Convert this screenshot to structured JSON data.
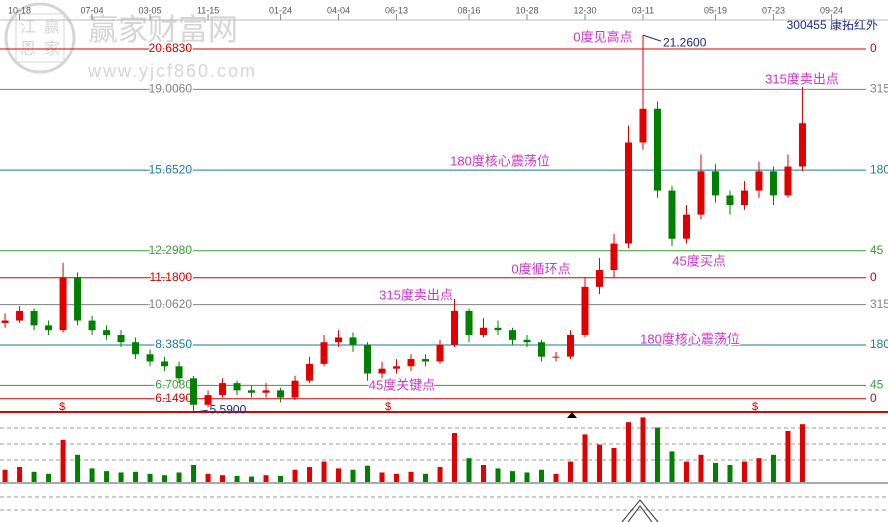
{
  "chart_data": {
    "type": "candlestick",
    "title": "300455 康拓红外",
    "watermark": {
      "site": "赢家财富网",
      "url": "www.yjcf860.com",
      "seal": [
        "江",
        "赢",
        "恩",
        "家"
      ]
    },
    "xlim": [
      -0.35,
      60.9
    ],
    "xticks": [
      {
        "value": 1,
        "label": "10-18"
      },
      {
        "value": 6,
        "label": "07-04"
      },
      {
        "value": 10,
        "label": "03-05"
      },
      {
        "value": 14,
        "label": "11-15"
      },
      {
        "value": 19,
        "label": "01-24"
      },
      {
        "value": 23,
        "label": "04-04"
      },
      {
        "value": 27,
        "label": "06-13"
      },
      {
        "value": 32,
        "label": "08-16"
      },
      {
        "value": 36,
        "label": "10-28"
      },
      {
        "value": 40,
        "label": "12-30"
      },
      {
        "value": 44,
        "label": "03-11"
      },
      {
        "value": 49,
        "label": "05-19"
      },
      {
        "value": 53,
        "label": "07-23"
      },
      {
        "value": 57,
        "label": "09-24"
      }
    ],
    "ylim": [
      5.6,
      22.72
    ],
    "levels": [
      {
        "value": 20.683,
        "label": "20.6830",
        "angle": "0",
        "color": "#d00000"
      },
      {
        "value": 19.006,
        "label": "19.0060",
        "angle": "315",
        "color": "#808080"
      },
      {
        "value": 15.652,
        "label": "15.6520",
        "angle": "180",
        "color": "#1a7a9a"
      },
      {
        "value": 12.298,
        "label": "12.2980",
        "angle": "45",
        "color": "#3a9a3a"
      },
      {
        "value": 11.18,
        "label": "11.1800",
        "angle": "0",
        "color": "#d00000"
      },
      {
        "value": 10.062,
        "label": "10.0620",
        "angle": "315",
        "color": "#808080"
      },
      {
        "value": 8.385,
        "label": "8.3850",
        "angle": "180",
        "color": "#1a7a9a"
      },
      {
        "value": 6.708,
        "label": "6.7080",
        "angle": "45",
        "color": "#3a9a3a"
      },
      {
        "value": 6.149,
        "label": "6.1490",
        "angle": "0",
        "color": "#d00000"
      }
    ],
    "open": [
      9.3,
      9.4,
      9.8,
      9.2,
      9.0,
      11.2,
      9.4,
      9.0,
      8.8,
      8.5,
      8.0,
      7.7,
      7.5,
      7.0,
      5.9,
      6.3,
      6.8,
      6.5,
      6.4,
      6.5,
      6.2,
      6.9,
      7.6,
      8.5,
      8.7,
      8.4,
      7.2,
      7.4,
      7.5,
      7.8,
      7.7,
      8.4,
      9.8,
      8.8,
      9.1,
      9.0,
      8.6,
      8.5,
      7.9,
      7.9,
      8.8,
      10.8,
      11.5,
      12.6,
      16.8,
      18.2,
      14.8,
      12.8,
      13.8,
      15.6,
      14.6,
      14.2,
      14.8,
      15.6,
      14.6,
      15.8
    ],
    "high": [
      9.7,
      10.0,
      9.9,
      9.4,
      11.8,
      11.4,
      9.6,
      9.2,
      9.0,
      8.7,
      8.2,
      7.9,
      7.7,
      7.1,
      6.5,
      7.0,
      6.9,
      6.7,
      6.8,
      6.6,
      7.1,
      7.9,
      8.8,
      9.0,
      8.9,
      8.5,
      7.7,
      7.8,
      8.0,
      8.0,
      8.6,
      10.3,
      9.9,
      9.5,
      9.4,
      9.1,
      8.8,
      8.6,
      8.1,
      9.0,
      11.2,
      12.0,
      13.0,
      17.5,
      21.26,
      18.5,
      15.0,
      14.2,
      16.3,
      15.9,
      14.8,
      15.2,
      16.0,
      15.8,
      16.3,
      19.1
    ],
    "low": [
      9.1,
      9.3,
      9.0,
      8.8,
      8.9,
      9.2,
      8.8,
      8.6,
      8.3,
      7.8,
      7.5,
      7.3,
      6.8,
      5.59,
      5.8,
      6.2,
      6.3,
      6.2,
      6.2,
      6.0,
      6.1,
      6.8,
      7.5,
      8.3,
      8.1,
      6.9,
      7.0,
      7.2,
      7.3,
      7.5,
      7.6,
      8.3,
      8.5,
      8.7,
      8.8,
      8.4,
      8.3,
      7.7,
      7.7,
      7.8,
      8.7,
      10.5,
      11.2,
      12.4,
      16.5,
      14.5,
      12.5,
      12.6,
      13.6,
      14.3,
      13.8,
      14.0,
      14.5,
      14.2,
      14.5,
      15.6
    ],
    "close": [
      9.4,
      9.8,
      9.2,
      9.0,
      11.2,
      9.4,
      9.0,
      8.8,
      8.5,
      8.0,
      7.7,
      7.5,
      7.0,
      5.9,
      6.3,
      6.8,
      6.5,
      6.4,
      6.5,
      6.2,
      6.9,
      7.6,
      8.5,
      8.7,
      8.4,
      7.2,
      7.4,
      7.5,
      7.8,
      7.7,
      8.4,
      9.8,
      8.8,
      9.1,
      9.0,
      8.6,
      8.5,
      7.9,
      7.9,
      8.8,
      10.8,
      11.5,
      12.6,
      16.8,
      18.2,
      14.8,
      12.8,
      13.8,
      15.6,
      14.6,
      14.2,
      14.8,
      15.6,
      14.6,
      15.8,
      17.6
    ],
    "volume": [
      18,
      22,
      15,
      12,
      62,
      40,
      20,
      16,
      14,
      15,
      12,
      10,
      14,
      25,
      12,
      10,
      9,
      8,
      10,
      9,
      18,
      22,
      30,
      20,
      18,
      24,
      14,
      12,
      15,
      12,
      22,
      72,
      35,
      25,
      20,
      16,
      14,
      18,
      12,
      30,
      70,
      55,
      50,
      88,
      95,
      80,
      45,
      30,
      40,
      28,
      25,
      30,
      35,
      40,
      75,
      85
    ],
    "volume_lim": [
      0,
      100
    ],
    "up_color": "#e00000",
    "down_color": "#008000",
    "max_label": "21.2600",
    "min_label": "5.5900",
    "annotations": [
      "0度见高点",
      "315度卖出点",
      "180度核心震荡位",
      "45度买点",
      "0度循环点",
      "315度卖出点",
      "180度核心震荡位",
      "45度关键点"
    ],
    "markers": [
      "$",
      "$",
      "$"
    ]
  }
}
